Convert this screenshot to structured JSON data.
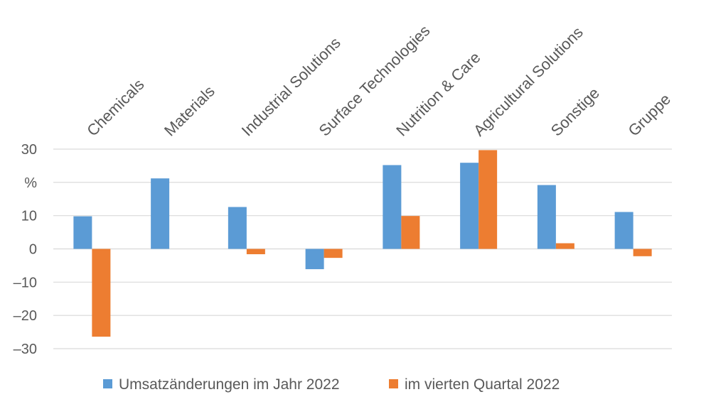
{
  "chart_data": {
    "type": "bar",
    "title": "",
    "xlabel": "",
    "ylabel": "%",
    "ylim": [
      -30,
      30
    ],
    "yticks": [
      30,
      "%",
      10,
      0,
      -10,
      -20,
      -30
    ],
    "grid": true,
    "legend_position": "bottom",
    "categories": [
      "Chemicals",
      "Materials",
      "Industrial Solutions",
      "Surface Technologies",
      "Nutrition & Care",
      "Agricultural Solutions",
      "Sonstige",
      "Gruppe"
    ],
    "series": [
      {
        "name": "Umsatzänderungen im Jahr 2022",
        "color": "#5b9bd5",
        "values": [
          9.8,
          21.2,
          12.6,
          -6.1,
          25.2,
          25.9,
          19.2,
          11.1
        ]
      },
      {
        "name": "im vierten Quartal 2022",
        "color": "#ed7d31",
        "values": [
          -26.4,
          0,
          -1.6,
          -2.7,
          9.9,
          29.7,
          1.7,
          -2.2
        ]
      }
    ]
  }
}
